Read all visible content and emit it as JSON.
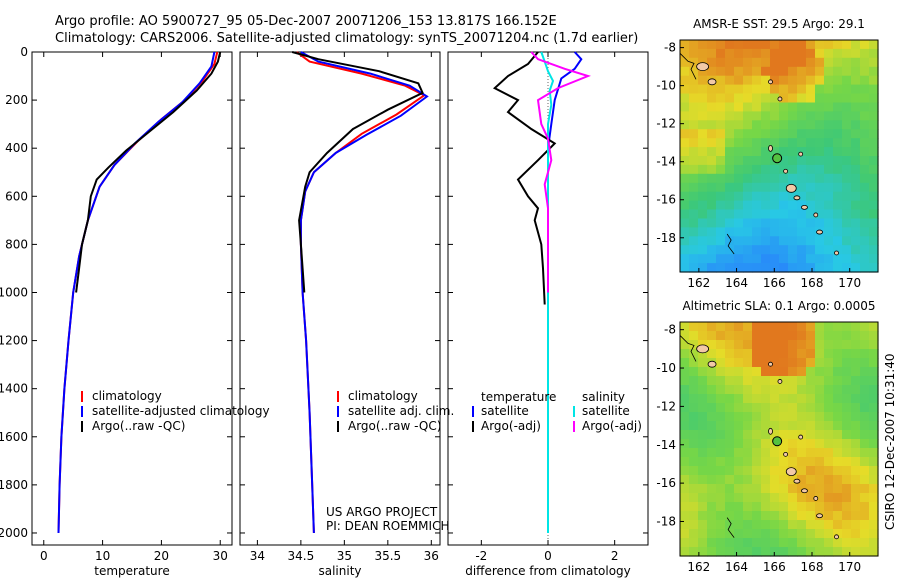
{
  "header": {
    "line1": "Argo profile: AO 5900727_95 05-Dec-2007 20071206_153 13.817S 166.152E",
    "line2": "Climatology: CARS2006. Satellite-adjusted climatology: synTS_20071204.nc (1.7d earlier)"
  },
  "colors": {
    "red": "#ff0000",
    "blue": "#0000ff",
    "black": "#000000",
    "cyan": "#00e5e5",
    "magenta": "#ff00ff"
  },
  "chart_data": [
    {
      "type": "line",
      "panel": "temperature",
      "xlabel": "temperature",
      "xlim": [
        -2,
        32
      ],
      "ylim": [
        0,
        2050
      ],
      "y_reversed": true,
      "xticks": [
        0,
        10,
        20,
        30
      ],
      "yticks": [
        0,
        200,
        400,
        600,
        800,
        1000,
        1200,
        1400,
        1600,
        1800,
        2000
      ],
      "legend": [
        "climatology",
        "satellite-adjusted climatology",
        "Argo(..raw -QC)"
      ],
      "series": [
        {
          "name": "climatology",
          "color": "red",
          "points": [
            [
              29.5,
              0
            ],
            [
              29,
              50
            ],
            [
              27,
              120
            ],
            [
              24,
              200
            ],
            [
              20,
              280
            ],
            [
              16,
              370
            ],
            [
              12,
              470
            ],
            [
              9.5,
              560
            ],
            [
              7.5,
              700
            ],
            [
              6,
              850
            ],
            [
              5,
              1000
            ],
            [
              4.2,
              1200
            ],
            [
              3.5,
              1400
            ],
            [
              3,
              1600
            ],
            [
              2.7,
              1800
            ],
            [
              2.5,
              2000
            ]
          ]
        },
        {
          "name": "satellite-adjusted climatology",
          "color": "blue",
          "points": [
            [
              29,
              0
            ],
            [
              28.5,
              60
            ],
            [
              26.5,
              130
            ],
            [
              23.5,
              210
            ],
            [
              19.5,
              290
            ],
            [
              15.5,
              380
            ],
            [
              12,
              470
            ],
            [
              9.5,
              560
            ],
            [
              7.5,
              700
            ],
            [
              6,
              850
            ],
            [
              5,
              1000
            ],
            [
              4.2,
              1200
            ],
            [
              3.5,
              1400
            ],
            [
              3,
              1600
            ],
            [
              2.7,
              1800
            ],
            [
              2.5,
              2000
            ]
          ]
        },
        {
          "name": "Argo(..raw -QC)",
          "color": "black",
          "points": [
            [
              30,
              0
            ],
            [
              29.6,
              40
            ],
            [
              28.5,
              90
            ],
            [
              26,
              160
            ],
            [
              22,
              250
            ],
            [
              18,
              330
            ],
            [
              14,
              410
            ],
            [
              11,
              480
            ],
            [
              9,
              530
            ],
            [
              8,
              600
            ],
            [
              7.5,
              700
            ],
            [
              6.5,
              800
            ],
            [
              6,
              900
            ],
            [
              5.5,
              1000
            ]
          ]
        }
      ]
    },
    {
      "type": "line",
      "panel": "salinity",
      "xlabel": "salinity",
      "xlim": [
        33.8,
        36.1
      ],
      "ylim": [
        0,
        2050
      ],
      "y_reversed": true,
      "xticks": [
        34,
        34.5,
        35,
        35.5,
        36
      ],
      "legend": [
        "climatology",
        "satellite adj. clim.",
        "Argo(..raw -QC)"
      ],
      "series": [
        {
          "name": "climatology",
          "color": "red",
          "points": [
            [
              34.45,
              0
            ],
            [
              34.6,
              40
            ],
            [
              35.2,
              90
            ],
            [
              35.7,
              140
            ],
            [
              35.92,
              180
            ],
            [
              35.6,
              260
            ],
            [
              35.2,
              340
            ],
            [
              34.9,
              420
            ],
            [
              34.65,
              500
            ],
            [
              34.55,
              580
            ],
            [
              34.5,
              700
            ],
            [
              34.5,
              800
            ],
            [
              34.52,
              1000
            ],
            [
              34.56,
              1200
            ],
            [
              34.6,
              1500
            ],
            [
              34.63,
              1800
            ],
            [
              34.65,
              2000
            ]
          ]
        },
        {
          "name": "satellite adj. clim.",
          "color": "blue",
          "points": [
            [
              34.5,
              0
            ],
            [
              34.7,
              40
            ],
            [
              35.3,
              90
            ],
            [
              35.75,
              140
            ],
            [
              35.95,
              185
            ],
            [
              35.65,
              265
            ],
            [
              35.25,
              345
            ],
            [
              34.9,
              420
            ],
            [
              34.65,
              500
            ],
            [
              34.55,
              580
            ],
            [
              34.5,
              700
            ],
            [
              34.5,
              800
            ],
            [
              34.52,
              1000
            ],
            [
              34.56,
              1200
            ],
            [
              34.6,
              1500
            ],
            [
              34.63,
              1800
            ],
            [
              34.65,
              2000
            ]
          ]
        },
        {
          "name": "Argo(..raw -QC)",
          "color": "black",
          "points": [
            [
              34.4,
              0
            ],
            [
              34.7,
              30
            ],
            [
              35.4,
              80
            ],
            [
              35.85,
              130
            ],
            [
              35.9,
              170
            ],
            [
              35.5,
              240
            ],
            [
              35.1,
              320
            ],
            [
              34.8,
              420
            ],
            [
              34.6,
              500
            ],
            [
              34.55,
              560
            ],
            [
              34.48,
              700
            ],
            [
              34.5,
              800
            ],
            [
              34.52,
              900
            ],
            [
              34.54,
              1000
            ]
          ]
        }
      ]
    },
    {
      "type": "line",
      "panel": "difference",
      "xlabel": "difference from climatology",
      "xlim": [
        -3,
        3
      ],
      "ylim": [
        0,
        2050
      ],
      "y_reversed": true,
      "xticks": [
        -2,
        0,
        2
      ],
      "legend_left_title": "temperature",
      "legend_right_title": "salinity",
      "legend": [
        "satellite",
        "Argo(-adj)",
        "satellite",
        "Argo(-adj)"
      ],
      "series": [
        {
          "name": "temperature satellite",
          "color": "blue",
          "points": [
            [
              0.8,
              0
            ],
            [
              1.0,
              30
            ],
            [
              0.8,
              70
            ],
            [
              0.4,
              110
            ],
            [
              0.2,
              200
            ],
            [
              0.1,
              300
            ],
            [
              0,
              400
            ],
            [
              0,
              600
            ],
            [
              0,
              800
            ],
            [
              0,
              1000
            ],
            [
              0,
              1400
            ],
            [
              0,
              2000
            ]
          ]
        },
        {
          "name": "temperature Argo(-adj)",
          "color": "black",
          "points": [
            [
              -0.3,
              0
            ],
            [
              -0.6,
              50
            ],
            [
              -1.2,
              100
            ],
            [
              -1.6,
              150
            ],
            [
              -0.9,
              200
            ],
            [
              -1.2,
              250
            ],
            [
              -0.5,
              320
            ],
            [
              0.2,
              380
            ],
            [
              -0.3,
              450
            ],
            [
              -0.9,
              530
            ],
            [
              -0.6,
              600
            ],
            [
              -0.3,
              650
            ],
            [
              -0.4,
              700
            ],
            [
              -0.2,
              800
            ],
            [
              -0.15,
              900
            ],
            [
              -0.1,
              1050
            ]
          ]
        },
        {
          "name": "salinity satellite",
          "color": "cyan",
          "points": [
            [
              -0.2,
              0
            ],
            [
              -0.1,
              40
            ],
            [
              0,
              80
            ],
            [
              0.15,
              120
            ],
            [
              0.05,
              160
            ],
            [
              0.1,
              220
            ],
            [
              0,
              300
            ],
            [
              0,
              500
            ],
            [
              0,
              800
            ],
            [
              0,
              1200
            ],
            [
              0,
              1600
            ],
            [
              0,
              2000
            ]
          ]
        },
        {
          "name": "salinity Argo(-adj)",
          "color": "magenta",
          "points": [
            [
              -0.5,
              0
            ],
            [
              -0.3,
              30
            ],
            [
              0.5,
              70
            ],
            [
              1.2,
              100
            ],
            [
              0.3,
              150
            ],
            [
              -0.3,
              200
            ],
            [
              -0.2,
              300
            ],
            [
              0,
              360
            ],
            [
              0.1,
              450
            ],
            [
              -0.1,
              550
            ],
            [
              0,
              650
            ],
            [
              0,
              800
            ],
            [
              0,
              1000
            ]
          ]
        }
      ]
    },
    {
      "type": "heatmap",
      "panel": "map-sst",
      "title": "AMSR-E SST: 29.5  Argo: 29.1",
      "xticks": [
        162,
        164,
        166,
        168,
        170
      ],
      "yticks": [
        -8,
        -10,
        -12,
        -14,
        -16,
        -18
      ],
      "xlim": [
        161,
        171.5
      ],
      "ylim": [
        -19.8,
        -7.6
      ],
      "float_lon": 166.152,
      "float_lat": -13.817
    },
    {
      "type": "heatmap",
      "panel": "map-sla",
      "title": "Altimetric SLA: 0.1  Argo: 0.0005",
      "xticks": [
        162,
        164,
        166,
        168,
        170
      ],
      "yticks": [
        -8,
        -10,
        -12,
        -14,
        -16,
        -18
      ],
      "xlim": [
        161,
        171.5
      ],
      "ylim": [
        -19.8,
        -7.6
      ],
      "float_lon": 166.152,
      "float_lat": -13.817
    }
  ],
  "annotations": {
    "project": "US ARGO PROJECT",
    "pi": "PI: DEAN ROEMMICH",
    "stamp": "CSIRO 12-Dec-2007 10:31:40"
  }
}
